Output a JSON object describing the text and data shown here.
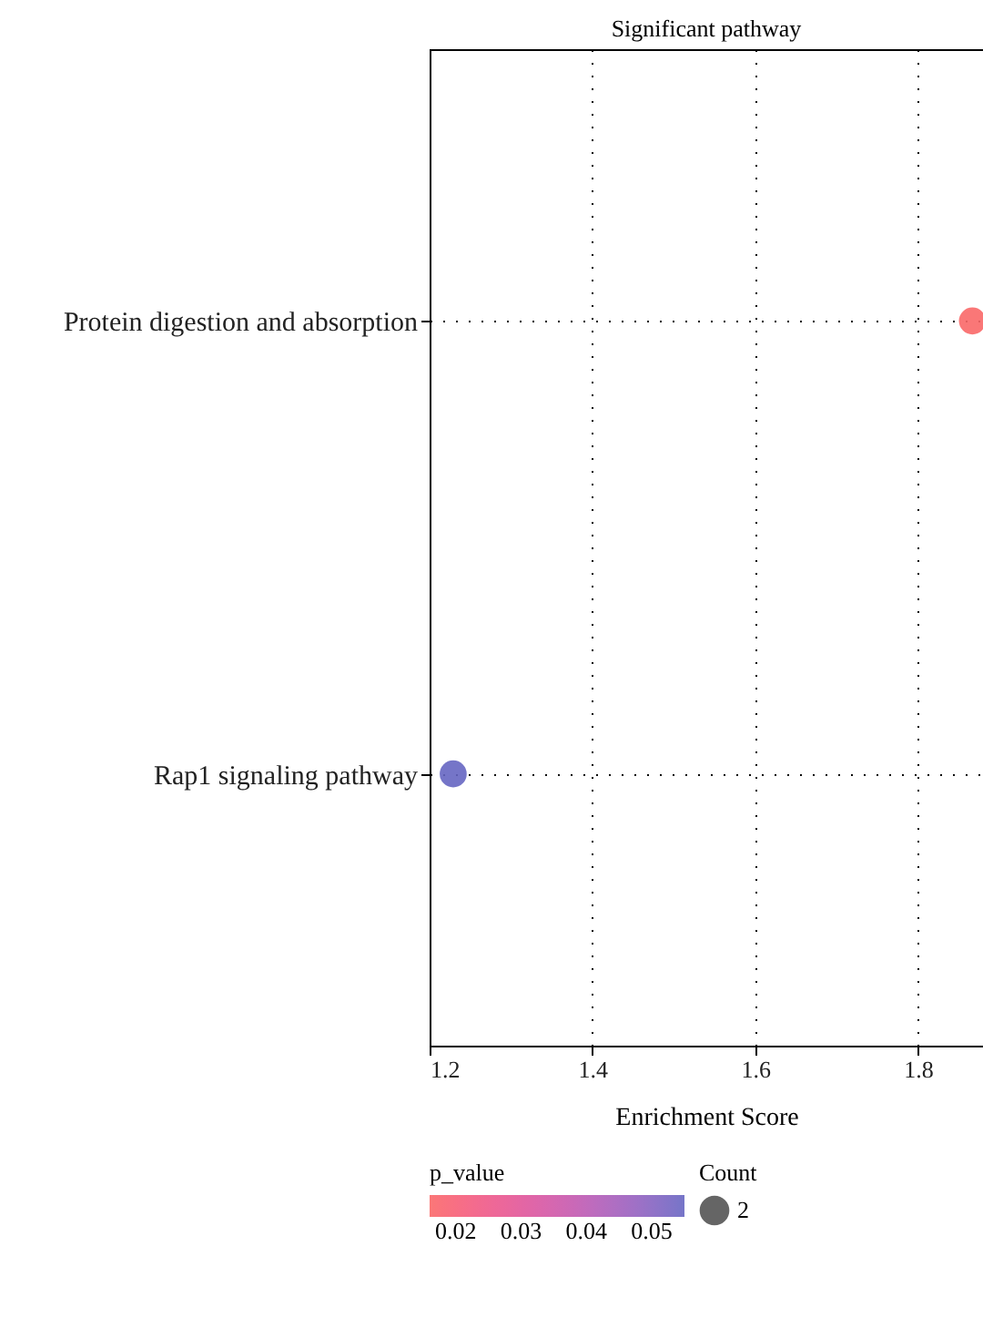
{
  "chart_data": {
    "type": "bubble",
    "orientation": "horizontal",
    "title": "Significant pathway",
    "xlabel": "Enrichment Score",
    "categories": [
      "Protein digestion and absorption",
      "Rap1 signaling pathway"
    ],
    "values": [
      1.867,
      1.229
    ],
    "sizes": [
      2,
      2
    ],
    "size_legend": [
      2
    ],
    "cvalues": [
      0.016,
      0.055
    ],
    "legend_title": "Count",
    "clabel": "p_value",
    "clim": [
      0.016,
      0.055
    ],
    "cticks": [
      0.02,
      0.03,
      0.04,
      0.05
    ],
    "xlim": [
      1.2,
      1.88
    ],
    "xticks": [
      1.2,
      1.4,
      1.6,
      1.8
    ],
    "grid": true,
    "marker": "circle"
  }
}
